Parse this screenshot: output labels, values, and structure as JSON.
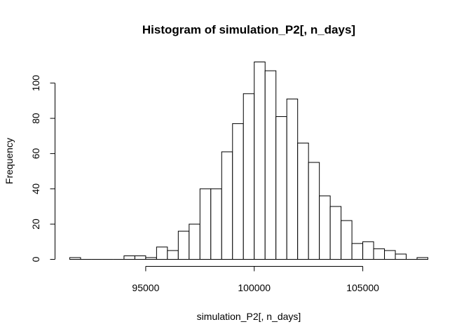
{
  "chart_data": {
    "type": "bar",
    "title": "Histogram of simulation_P2[, n_days]",
    "xlabel": "simulation_P2[, n_days]",
    "ylabel": "Frequency",
    "bin_width": 500,
    "bins": [
      {
        "start": 91500,
        "end": 92000,
        "count": 1
      },
      {
        "start": 92000,
        "end": 92500,
        "count": 0
      },
      {
        "start": 92500,
        "end": 93000,
        "count": 0
      },
      {
        "start": 93000,
        "end": 93500,
        "count": 0
      },
      {
        "start": 93500,
        "end": 94000,
        "count": 0
      },
      {
        "start": 94000,
        "end": 94500,
        "count": 2
      },
      {
        "start": 94500,
        "end": 95000,
        "count": 2
      },
      {
        "start": 95000,
        "end": 95500,
        "count": 1
      },
      {
        "start": 95500,
        "end": 96000,
        "count": 7
      },
      {
        "start": 96000,
        "end": 96500,
        "count": 5
      },
      {
        "start": 96500,
        "end": 97000,
        "count": 16
      },
      {
        "start": 97000,
        "end": 97500,
        "count": 20
      },
      {
        "start": 97500,
        "end": 98000,
        "count": 40
      },
      {
        "start": 98000,
        "end": 98500,
        "count": 40
      },
      {
        "start": 98500,
        "end": 99000,
        "count": 61
      },
      {
        "start": 99000,
        "end": 99500,
        "count": 77
      },
      {
        "start": 99500,
        "end": 100000,
        "count": 94
      },
      {
        "start": 100000,
        "end": 100500,
        "count": 112
      },
      {
        "start": 100500,
        "end": 101000,
        "count": 107
      },
      {
        "start": 101000,
        "end": 101500,
        "count": 81
      },
      {
        "start": 101500,
        "end": 102000,
        "count": 91
      },
      {
        "start": 102000,
        "end": 102500,
        "count": 66
      },
      {
        "start": 102500,
        "end": 103000,
        "count": 55
      },
      {
        "start": 103000,
        "end": 103500,
        "count": 36
      },
      {
        "start": 103500,
        "end": 104000,
        "count": 30
      },
      {
        "start": 104000,
        "end": 104500,
        "count": 22
      },
      {
        "start": 104500,
        "end": 105000,
        "count": 9
      },
      {
        "start": 105000,
        "end": 105500,
        "count": 10
      },
      {
        "start": 105500,
        "end": 106000,
        "count": 6
      },
      {
        "start": 106000,
        "end": 106500,
        "count": 5
      },
      {
        "start": 106500,
        "end": 107000,
        "count": 3
      },
      {
        "start": 107000,
        "end": 107500,
        "count": 0
      },
      {
        "start": 107500,
        "end": 108000,
        "count": 1
      }
    ],
    "xlim": [
      91500,
      108000
    ],
    "ylim": [
      0,
      112
    ],
    "x_ticks": [
      95000,
      100000,
      105000
    ],
    "x_tick_labels": [
      "95000",
      "100000",
      "105000"
    ],
    "y_ticks": [
      0,
      20,
      40,
      60,
      80,
      100
    ],
    "y_tick_labels": [
      "0",
      "20",
      "40",
      "60",
      "80",
      "100"
    ],
    "grid": false,
    "bar_fill": "#ffffff",
    "bar_stroke": "#000000"
  }
}
